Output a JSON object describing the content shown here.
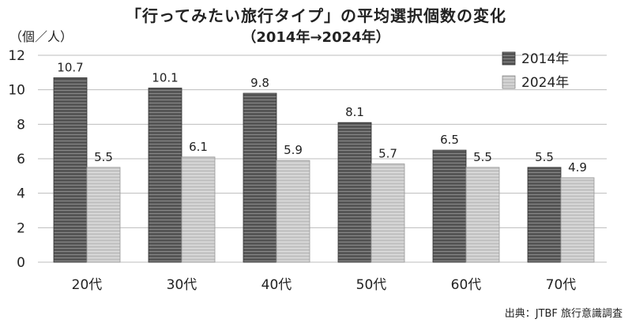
{
  "chart_data": {
    "type": "bar",
    "title": "「行ってみたい旅行タイプ」の平均選択個数の変化",
    "subtitle": "（2014年→2024年）",
    "ylabel": "（個／人）",
    "categories": [
      "20代",
      "30代",
      "40代",
      "50代",
      "60代",
      "70代"
    ],
    "series": [
      {
        "name": "2014年",
        "values": [
          10.7,
          10.1,
          9.8,
          8.1,
          6.5,
          5.5
        ],
        "value_labels": [
          "10.7",
          "10.1",
          "9.8",
          "8.1",
          "6.5",
          "5.5"
        ]
      },
      {
        "name": "2024年",
        "values": [
          5.5,
          6.1,
          5.9,
          5.7,
          5.5,
          4.9
        ],
        "value_labels": [
          "5.5",
          "6.1",
          "5.9",
          "5.7",
          "5.5",
          "4.9"
        ]
      }
    ],
    "ylim": [
      0,
      12
    ],
    "yticks": [
      0,
      2,
      4,
      6,
      8,
      10,
      12
    ],
    "grid": true,
    "legend": "top-right",
    "colors": {
      "s2014_fill": "#555555",
      "s2014_stripe": "#8a8a8a",
      "s2024_fill": "#c4c4c4",
      "s2024_stripe": "#e2e2e2",
      "grid": "#bdbdbd",
      "text": "#222222"
    },
    "source": "出典：JTBF 旅行意識調査"
  }
}
